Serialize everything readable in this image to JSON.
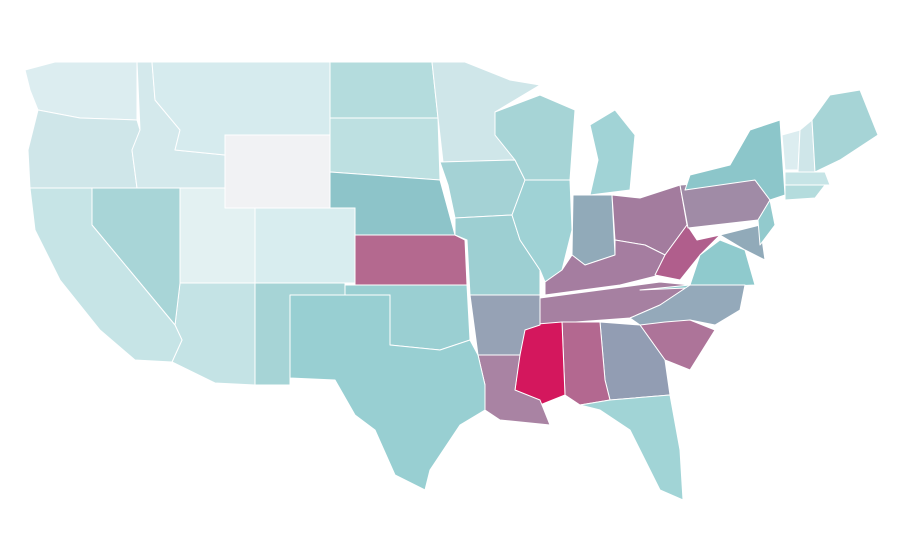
{
  "map": {
    "regions": [
      {
        "color": "#dcedf0"
      },
      {
        "color": "#cfe6e9"
      },
      {
        "color": "#d4e9ec"
      },
      {
        "color": "#d6ebee"
      },
      {
        "color": "#f1f2f4"
      },
      {
        "color": "#b4dcdd"
      },
      {
        "color": "#bde0e1"
      },
      {
        "color": "#8dc4c9"
      },
      {
        "color": "#b4698f"
      },
      {
        "color": "#cfe6e9"
      },
      {
        "color": "#a4d2d5"
      },
      {
        "color": "#9dcfd2"
      },
      {
        "color": "#a6d4d6"
      },
      {
        "color": "#9fd2d5"
      },
      {
        "color": "#a1d3d6"
      },
      {
        "color": "#91aab9"
      },
      {
        "color": "#a37c9e"
      },
      {
        "color": "#a57da0"
      },
      {
        "color": "#a680a1"
      },
      {
        "color": "#b05e8c"
      },
      {
        "color": "#a08ba6"
      },
      {
        "color": "#8cc6ca"
      },
      {
        "color": "#8fcacd"
      },
      {
        "color": "#94a9ba"
      },
      {
        "color": "#ad7499"
      },
      {
        "color": "#929db3"
      },
      {
        "color": "#b36890"
      },
      {
        "color": "#d4175d"
      },
      {
        "color": "#96a2b5"
      },
      {
        "color": "#a983a3"
      },
      {
        "color": "#9acfd2"
      },
      {
        "color": "#98cfd2"
      },
      {
        "color": "#a6d4d6"
      },
      {
        "color": "#c4e3e5"
      },
      {
        "color": "#d8edef"
      },
      {
        "color": "#e3f1f2"
      },
      {
        "color": "#a8d5d7"
      },
      {
        "color": "#c6e4e6"
      },
      {
        "color": "#a1d4d6"
      },
      {
        "color": "#91aab9"
      },
      {
        "color": "#92cacd"
      },
      {
        "color": "#dcedf0"
      },
      {
        "color": "#cfe6e9"
      },
      {
        "color": "#a6d4d6"
      },
      {
        "color": "#c6e4e6"
      },
      {
        "color": "#b4dcdd"
      }
    ]
  }
}
